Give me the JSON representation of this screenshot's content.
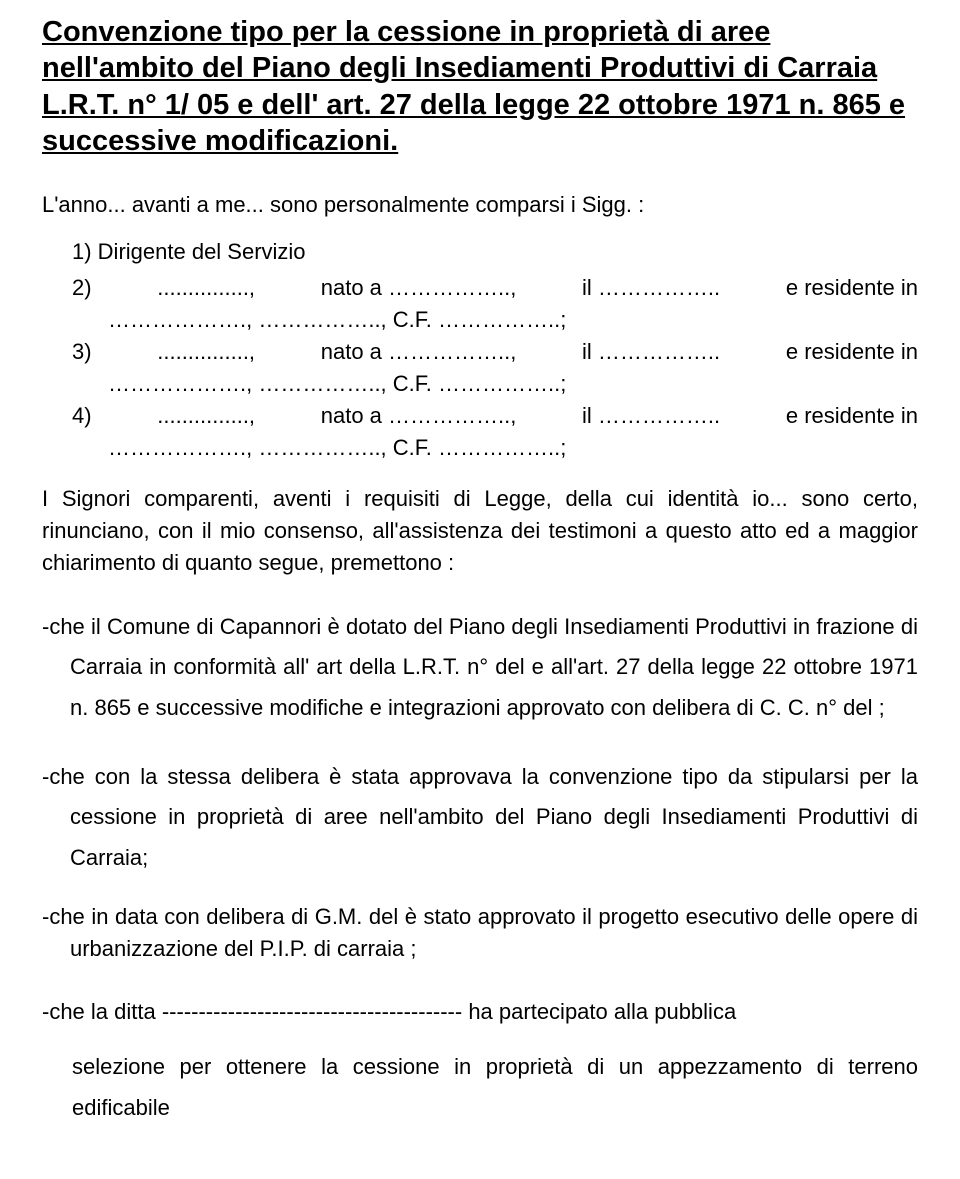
{
  "typography": {
    "font_family": "Arial",
    "title_fontsize_pt": 22,
    "body_fontsize_pt": 16,
    "title_weight": "bold",
    "body_weight": "normal",
    "text_color": "#000000",
    "background_color": "#ffffff"
  },
  "title": "Convenzione tipo per la cessione in proprietà di aree nell'ambito del Piano degli Insediamenti Produttivi di Carraia L.R.T. n° 1/ 05 e dell' art. 27 della legge 22 ottobre 1971 n. 865 e successive modificazioni.",
  "intro": "L'anno... avanti a me... sono personalmente comparsi i  Sigg. :",
  "list_lead": "1)  Dirigente del Servizio",
  "parties": [
    {
      "num": "2)",
      "line1_left": "..............., ",
      "line1_mid1": "nato   a   …………….., ",
      "line1_mid2": "il   ……………..   ",
      "line1_right": "e   residente   in",
      "line2": "……………….,  ……………..,  C.F.  ……………..;"
    },
    {
      "num": "3)",
      "line1_left": "..............., ",
      "line1_mid1": "nato   a   …………….., ",
      "line1_mid2": "il   ……………..   ",
      "line1_right": "e   residente   in",
      "line2": "……………….,  ……………..,  C.F.  ……………..;"
    },
    {
      "num": "4)",
      "line1_left": "..............., ",
      "line1_mid1": "nato   a   …………….., ",
      "line1_mid2": "il   ……………..   ",
      "line1_right": "e   residente   in",
      "line2": "……………….,  ……………..,  C.F.  ……………..;"
    }
  ],
  "body1": "I Signori comparenti, aventi i requisiti di  Legge, della cui identità io... sono certo, rinunciano, con il mio consenso, all'assistenza dei testimoni a questo atto ed a maggior chiarimento di quanto segue, premettono :",
  "bullets": [
    "-che il Comune di Capannori è dotato del Piano degli Insediamenti Produttivi in frazione di Carraia  in conformità all' art                     della L.R.T. n°   del             e all'art. 27 della legge 22 ottobre 1971 n. 865 e successive modifiche e integrazioni approvato con delibera di C. C. n°                  del                            ;",
    "-che con la stessa delibera è stata approvava la convenzione tipo da stipularsi per la cessione in proprietà di aree nell'ambito del Piano degli Insediamenti Produttivi di Carraia;",
    "-che  in data              con delibera di G.M.                           del                 è stato approvato il progetto esecutivo delle opere di urbanizzazione del P.I.P. di carraia ;",
    "-che la ditta ----------------------------------------- ha partecipato  alla pubblica"
  ],
  "final": "selezione per ottenere la cessione in proprietà di un appezzamento di terreno edificabile"
}
